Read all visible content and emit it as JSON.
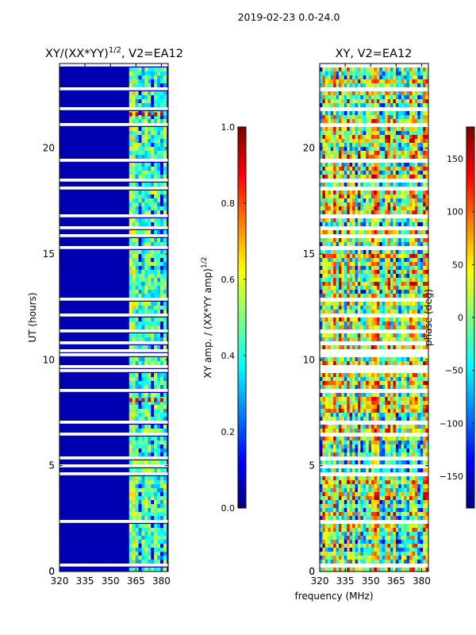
{
  "chart_data": [
    {
      "type": "heatmap",
      "suptitle": "2019-02-23 0.0-24.0",
      "title": "XY/(XX*YY)",
      "title_exponent": "1/2",
      "title_suffix": ", V2=EA12",
      "ylabel": "UT (hours)",
      "xlim": [
        320,
        384
      ],
      "ylim": [
        0,
        24
      ],
      "x_ticks": [
        320,
        335,
        350,
        365,
        380
      ],
      "y_ticks": [
        0,
        5,
        10,
        15,
        20
      ],
      "colorbar": {
        "label": "XY amp. / (XX*YY amp)",
        "label_exponent": "1/2",
        "range": [
          0.0,
          1.0
        ],
        "ticks": [
          0.0,
          0.2,
          0.4,
          0.6,
          0.8,
          1.0
        ],
        "tick_labels": [
          "0.0",
          "0.2",
          "0.4",
          "0.6",
          "0.8",
          "1.0"
        ]
      },
      "colormap": "jet",
      "features": {
        "low_band_mhz": [
          320,
          361
        ],
        "low_band_value": 0.05,
        "active_band_mhz": [
          361,
          383
        ],
        "active_band_value_range": [
          0.2,
          0.7
        ],
        "bright_rows_hours": [
          8.1,
          21.6
        ]
      }
    },
    {
      "type": "heatmap",
      "title": "XY, V2=EA12",
      "xlabel": "frequency (MHz)",
      "xlim": [
        320,
        384
      ],
      "ylim": [
        0,
        24
      ],
      "x_ticks": [
        320,
        335,
        350,
        365,
        380
      ],
      "y_ticks": [
        0,
        5,
        10,
        15,
        20
      ],
      "colorbar": {
        "label": "phase (deg)",
        "range": [
          -180,
          180
        ],
        "ticks": [
          -150,
          -100,
          -50,
          0,
          50,
          100,
          150
        ],
        "tick_labels": [
          "−150",
          "−100",
          "−50",
          "0",
          "50",
          "100",
          "150"
        ]
      },
      "colormap": "jet",
      "features": {
        "phase_range_deg": [
          -180,
          180
        ]
      }
    }
  ]
}
